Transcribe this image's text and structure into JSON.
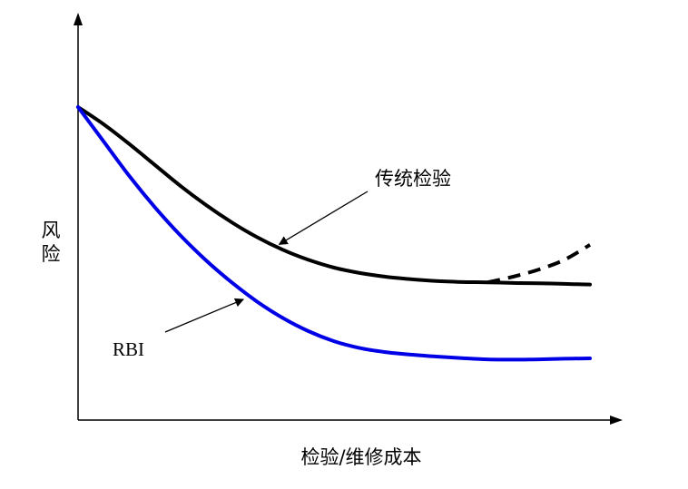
{
  "chart_data": {
    "type": "line",
    "xlabel": "检验/维修成本",
    "ylabel": "风险",
    "grid": false,
    "x": [
      0,
      0.05,
      0.1,
      0.15,
      0.2,
      0.25,
      0.3,
      0.35,
      0.4,
      0.45,
      0.5,
      0.55,
      0.6,
      0.65,
      0.7,
      0.75,
      0.8,
      0.85,
      0.9,
      0.95,
      1.0
    ],
    "series": [
      {
        "name": "传统检验",
        "color": "#000000",
        "style": "solid",
        "values": [
          1.0,
          0.945,
          0.882,
          0.815,
          0.748,
          0.687,
          0.632,
          0.584,
          0.544,
          0.512,
          0.487,
          0.47,
          0.458,
          0.45,
          0.444,
          0.441,
          0.44,
          0.438,
          0.437,
          0.435,
          0.433
        ]
      },
      {
        "name": "",
        "color": "#000000",
        "style": "dashed",
        "x": [
          0.8,
          0.85,
          0.9,
          0.95,
          1.0
        ],
        "values": [
          0.44,
          0.458,
          0.481,
          0.512,
          0.56
        ]
      },
      {
        "name": "RBI",
        "color": "#0000e6",
        "style": "solid",
        "values": [
          1.0,
          0.89,
          0.78,
          0.68,
          0.59,
          0.51,
          0.44,
          0.378,
          0.326,
          0.284,
          0.252,
          0.23,
          0.217,
          0.209,
          0.203,
          0.198,
          0.194,
          0.193,
          0.194,
          0.196,
          0.197
        ]
      }
    ],
    "annotations": [
      {
        "text": "传统检验",
        "series": "传统检验",
        "arrow_to_x": 0.4
      },
      {
        "text": "RBI",
        "series": "RBI",
        "arrow_to_x": 0.33
      }
    ],
    "ylim": [
      0,
      1.0
    ]
  }
}
